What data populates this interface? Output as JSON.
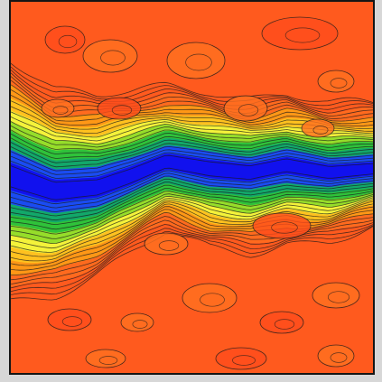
{
  "chart_data": {
    "type": "heatmap",
    "subtype": "filled-contour",
    "title": "",
    "xlabel": "",
    "ylabel": "",
    "grid": false,
    "legend": false,
    "colorscale": [
      {
        "level": 0.0,
        "color": "#1111ee"
      },
      {
        "level": 0.12,
        "color": "#1a4cf2"
      },
      {
        "level": 0.22,
        "color": "#12a86a"
      },
      {
        "level": 0.32,
        "color": "#2fc23a"
      },
      {
        "level": 0.42,
        "color": "#96dd2a"
      },
      {
        "level": 0.52,
        "color": "#f4f23a"
      },
      {
        "level": 0.62,
        "color": "#ffc11f"
      },
      {
        "level": 0.74,
        "color": "#ff9716"
      },
      {
        "level": 0.86,
        "color": "#ff6a1e"
      },
      {
        "level": 1.0,
        "color": "#ff4a1b"
      }
    ],
    "feature": {
      "name": "low-value band",
      "centerline_y": [
        0.47,
        0.51,
        0.5,
        0.47,
        0.43,
        0.45,
        0.46,
        0.44,
        0.46,
        0.45
      ],
      "centerline_x": [
        0.0,
        0.12,
        0.24,
        0.33,
        0.43,
        0.55,
        0.66,
        0.76,
        0.88,
        1.0
      ],
      "thickness": [
        0.09,
        0.075,
        0.065,
        0.06,
        0.055,
        0.06,
        0.058,
        0.055,
        0.05,
        0.045
      ],
      "min_value": 0.02,
      "background_value": 0.92
    }
  }
}
